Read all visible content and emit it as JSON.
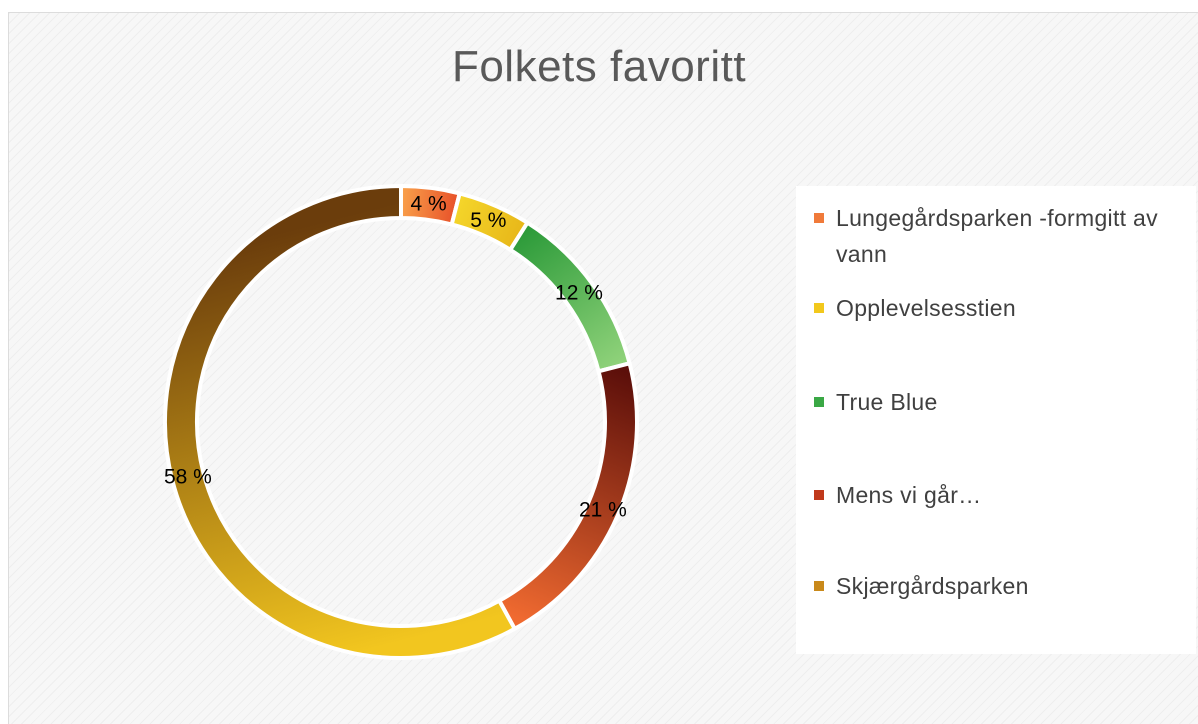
{
  "chart_data": {
    "type": "pie",
    "style": "doughnut",
    "title": "Folkets favoritt",
    "categories": [
      "Lungegårdsparken -formgitt av vann",
      "Opplevelsesstien",
      "True Blue",
      "Mens vi går…",
      "Skjærgårdsparken"
    ],
    "values": [
      4,
      5,
      12,
      21,
      58
    ],
    "data_labels": [
      "4 %",
      "5 %",
      "12 %",
      "21 %",
      "58 %"
    ],
    "colors": [
      "#f07a3a",
      "#f2c81c",
      "#3aa845",
      "#c0391b",
      "#c9891a"
    ],
    "gradients": [
      [
        "#f9a04a",
        "#e8532a"
      ],
      [
        "#f4d52a",
        "#e8b81a"
      ],
      [
        "#2d9b3a",
        "#8fd27a"
      ],
      [
        "#5c0f0a",
        "#f06a30"
      ],
      [
        "#f2c61f",
        "#6b3d0c"
      ]
    ],
    "legend_position": "right"
  }
}
